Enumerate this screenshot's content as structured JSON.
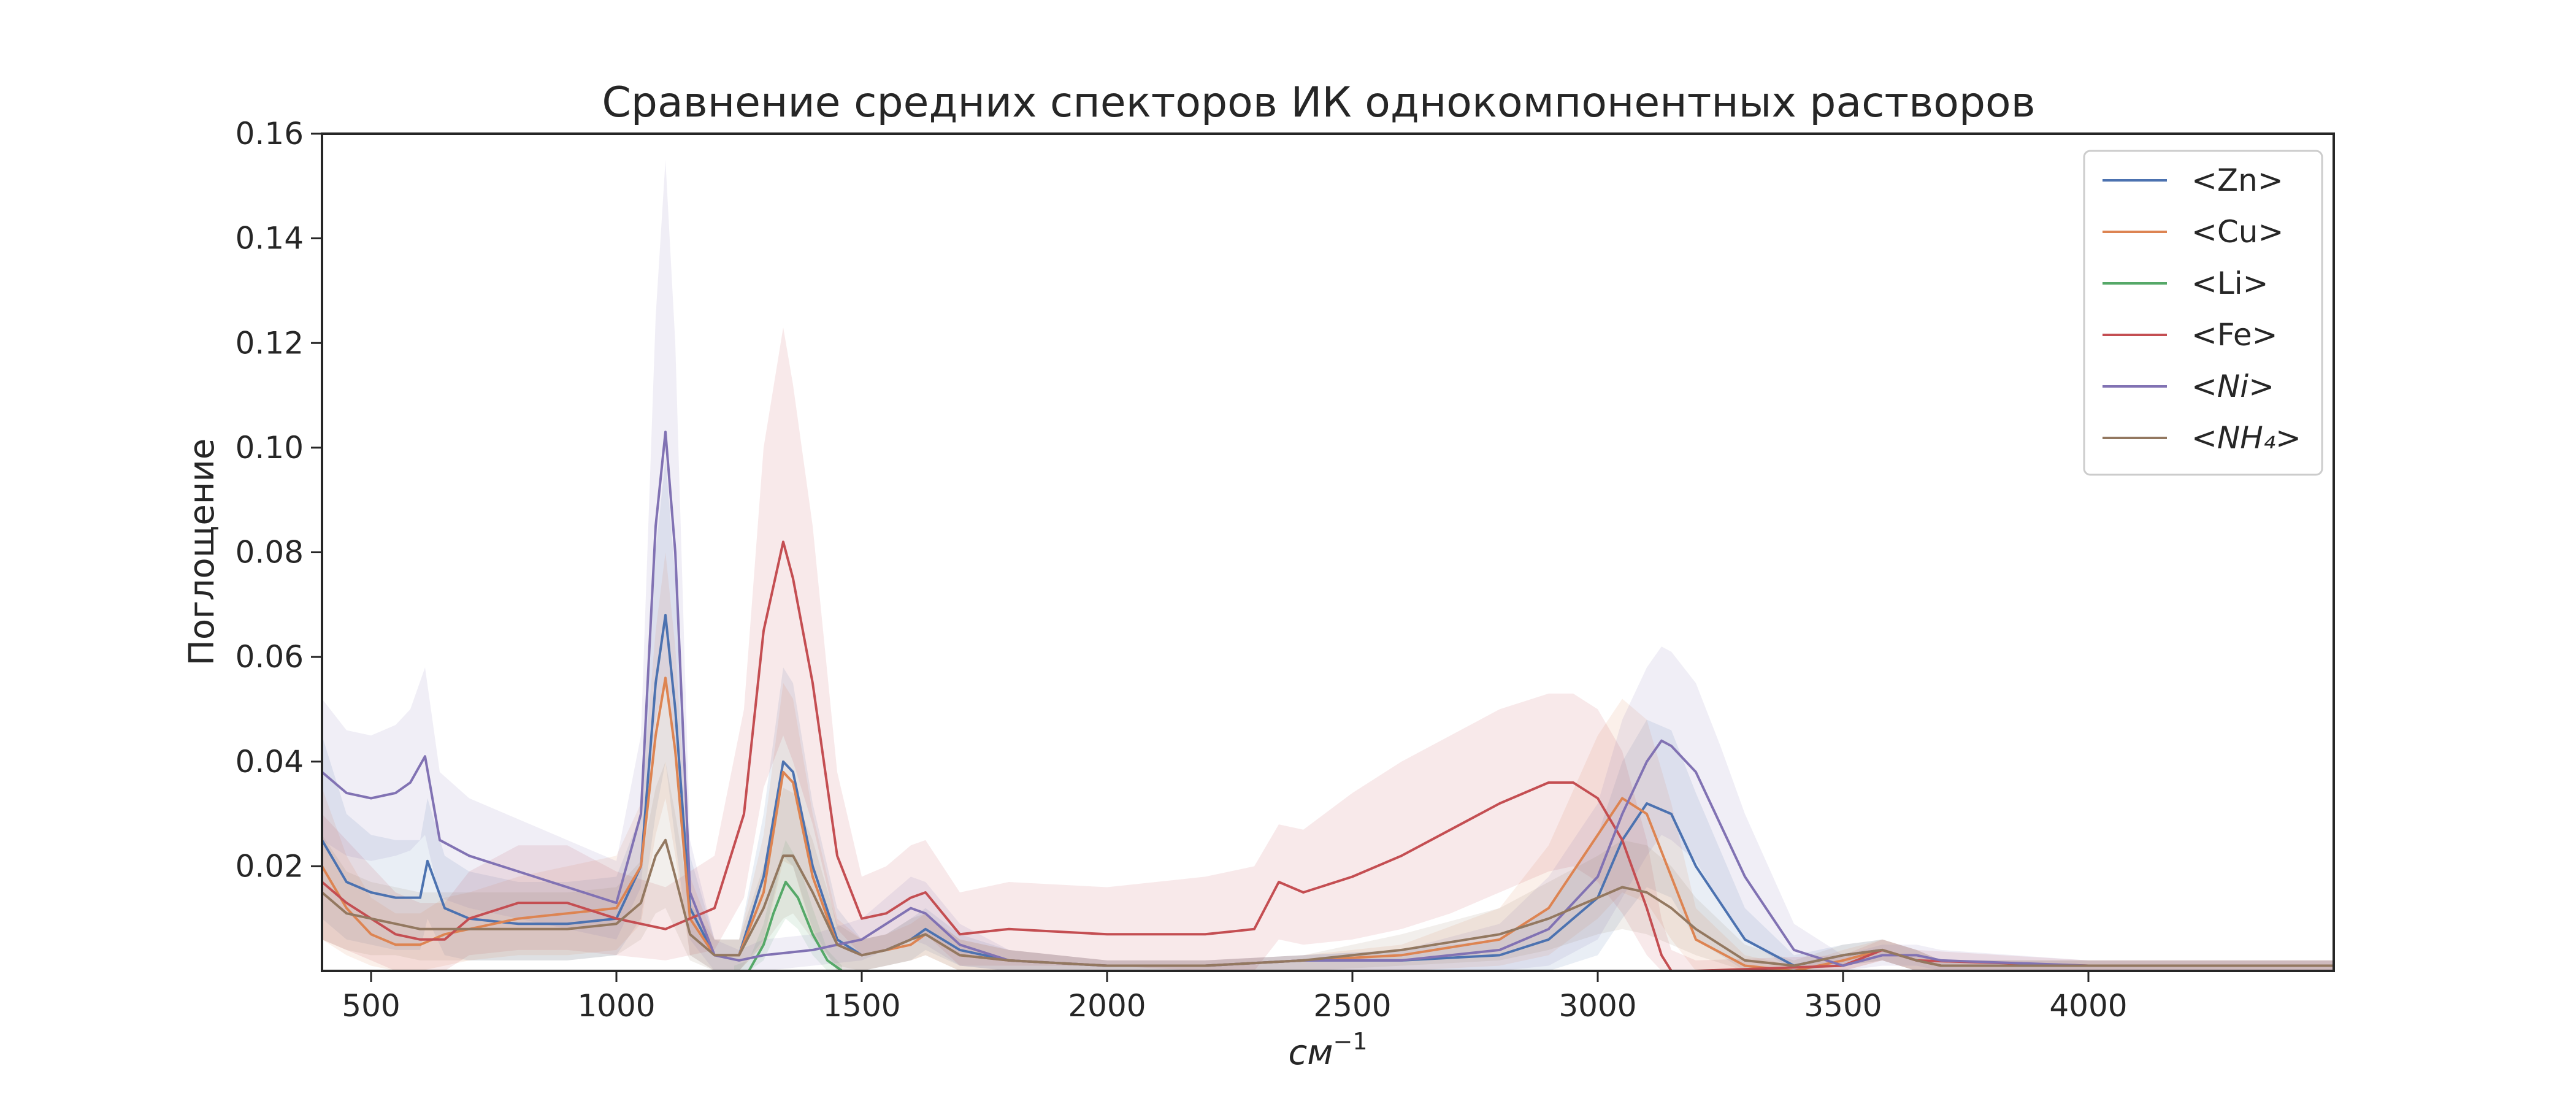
{
  "chart_data": {
    "type": "line",
    "title": "Сравнение средних спекторов ИК однокомпонентных растворов",
    "xlabel": "см",
    "xlabel_sup": "−1",
    "ylabel": "Поглощение",
    "xlim": [
      400,
      4500
    ],
    "ylim": [
      0,
      0.16
    ],
    "x_ticks": [
      500,
      1000,
      1500,
      2000,
      2500,
      3000,
      3500,
      4000
    ],
    "x_tick_labels": [
      "500",
      "1000",
      "1500",
      "2000",
      "2500",
      "3000",
      "3500",
      "4000"
    ],
    "y_ticks": [
      0.02,
      0.04,
      0.06,
      0.08,
      0.1,
      0.12,
      0.14,
      0.16
    ],
    "y_tick_labels": [
      "0.02",
      "0.04",
      "0.06",
      "0.08",
      "0.10",
      "0.12",
      "0.14",
      "0.16"
    ],
    "grid": false,
    "legend_position": "top-right",
    "series": [
      {
        "name": "<Zn>",
        "color": "#4c72b0",
        "x": [
          400,
          450,
          500,
          550,
          600,
          615,
          650,
          700,
          800,
          900,
          1000,
          1050,
          1080,
          1100,
          1120,
          1150,
          1200,
          1250,
          1300,
          1340,
          1360,
          1400,
          1450,
          1500,
          1550,
          1600,
          1630,
          1700,
          1800,
          2000,
          2200,
          2400,
          2600,
          2800,
          2900,
          3000,
          3050,
          3100,
          3150,
          3200,
          3300,
          3400,
          3500,
          3580,
          3650,
          3700,
          4000,
          4500
        ],
        "y": [
          0.025,
          0.017,
          0.015,
          0.014,
          0.014,
          0.021,
          0.012,
          0.01,
          0.009,
          0.009,
          0.01,
          0.02,
          0.055,
          0.068,
          0.05,
          0.012,
          0.003,
          0.003,
          0.018,
          0.04,
          0.038,
          0.02,
          0.006,
          0.003,
          0.004,
          0.006,
          0.008,
          0.004,
          0.002,
          0.001,
          0.001,
          0.002,
          0.002,
          0.003,
          0.006,
          0.014,
          0.025,
          0.032,
          0.03,
          0.02,
          0.006,
          0.001,
          0.003,
          0.004,
          0.002,
          0.001,
          0.001,
          0.001
        ],
        "upper": [
          0.045,
          0.03,
          0.026,
          0.025,
          0.025,
          0.033,
          0.022,
          0.019,
          0.017,
          0.017,
          0.018,
          0.03,
          0.08,
          0.098,
          0.075,
          0.022,
          0.006,
          0.006,
          0.03,
          0.058,
          0.055,
          0.032,
          0.012,
          0.006,
          0.007,
          0.01,
          0.012,
          0.007,
          0.004,
          0.002,
          0.002,
          0.003,
          0.004,
          0.006,
          0.012,
          0.026,
          0.04,
          0.048,
          0.046,
          0.034,
          0.012,
          0.003,
          0.005,
          0.006,
          0.004,
          0.002,
          0.002,
          0.002
        ],
        "lower": [
          0.01,
          0.006,
          0.005,
          0.004,
          0.004,
          0.01,
          0.003,
          0.002,
          0.002,
          0.002,
          0.003,
          0.01,
          0.03,
          0.04,
          0.025,
          0.003,
          0.0,
          0.0,
          0.006,
          0.022,
          0.02,
          0.008,
          0.0,
          0.0,
          0.001,
          0.002,
          0.004,
          0.001,
          0.0,
          0.0,
          0.0,
          0.0,
          0.0,
          0.0,
          0.0,
          0.003,
          0.01,
          0.016,
          0.014,
          0.006,
          0.0,
          0.0,
          0.001,
          0.002,
          0.0,
          0.0,
          0.0,
          0.0
        ]
      },
      {
        "name": "<Cu>",
        "color": "#dd8452",
        "x": [
          400,
          450,
          500,
          550,
          600,
          650,
          700,
          800,
          900,
          1000,
          1050,
          1080,
          1100,
          1120,
          1150,
          1200,
          1250,
          1300,
          1340,
          1360,
          1400,
          1450,
          1500,
          1550,
          1600,
          1630,
          1700,
          1800,
          2000,
          2200,
          2400,
          2600,
          2800,
          2900,
          3000,
          3050,
          3100,
          3150,
          3200,
          3300,
          3400,
          3500,
          3580,
          3650,
          3700,
          4000,
          4500
        ],
        "y": [
          0.02,
          0.012,
          0.007,
          0.005,
          0.005,
          0.007,
          0.008,
          0.01,
          0.011,
          0.012,
          0.02,
          0.045,
          0.056,
          0.042,
          0.01,
          0.003,
          0.003,
          0.015,
          0.038,
          0.036,
          0.018,
          0.005,
          0.003,
          0.004,
          0.005,
          0.007,
          0.003,
          0.002,
          0.001,
          0.001,
          0.002,
          0.003,
          0.006,
          0.012,
          0.026,
          0.033,
          0.03,
          0.018,
          0.006,
          0.001,
          0.0,
          0.002,
          0.004,
          0.002,
          0.001,
          0.001,
          0.001
        ],
        "upper": [
          0.035,
          0.022,
          0.014,
          0.011,
          0.011,
          0.014,
          0.015,
          0.018,
          0.02,
          0.022,
          0.032,
          0.065,
          0.08,
          0.062,
          0.018,
          0.006,
          0.006,
          0.026,
          0.055,
          0.052,
          0.03,
          0.01,
          0.006,
          0.007,
          0.009,
          0.011,
          0.006,
          0.004,
          0.002,
          0.002,
          0.003,
          0.005,
          0.012,
          0.024,
          0.045,
          0.052,
          0.048,
          0.032,
          0.012,
          0.003,
          0.001,
          0.004,
          0.006,
          0.004,
          0.002,
          0.002,
          0.002
        ],
        "lower": [
          0.006,
          0.003,
          0.001,
          0.0,
          0.0,
          0.001,
          0.002,
          0.003,
          0.003,
          0.004,
          0.009,
          0.026,
          0.033,
          0.022,
          0.003,
          0.0,
          0.0,
          0.005,
          0.021,
          0.02,
          0.007,
          0.0,
          0.0,
          0.001,
          0.002,
          0.003,
          0.0,
          0.0,
          0.0,
          0.0,
          0.0,
          0.0,
          0.001,
          0.003,
          0.01,
          0.015,
          0.013,
          0.006,
          0.0,
          0.0,
          0.0,
          0.0,
          0.002,
          0.0,
          0.0,
          0.0,
          0.0
        ]
      },
      {
        "name": "<Li>",
        "color": "#55a868",
        "x": [
          1240,
          1270,
          1300,
          1320,
          1345,
          1370,
          1400,
          1430,
          1460
        ],
        "y": [
          0.0,
          0.0,
          0.005,
          0.011,
          0.017,
          0.014,
          0.007,
          0.002,
          0.0
        ],
        "upper": [
          0.001,
          0.002,
          0.009,
          0.017,
          0.025,
          0.021,
          0.012,
          0.004,
          0.001
        ],
        "lower": [
          0.0,
          0.0,
          0.002,
          0.006,
          0.01,
          0.008,
          0.003,
          0.0,
          0.0
        ]
      },
      {
        "name": "<Fe>",
        "color": "#c44e52",
        "x": [
          400,
          450,
          500,
          550,
          600,
          650,
          700,
          800,
          900,
          1000,
          1100,
          1200,
          1260,
          1300,
          1340,
          1360,
          1400,
          1450,
          1500,
          1550,
          1600,
          1630,
          1700,
          1800,
          2000,
          2200,
          2300,
          2350,
          2400,
          2500,
          2600,
          2700,
          2800,
          2900,
          2950,
          3000,
          3050,
          3100,
          3130,
          3150,
          3200,
          3500,
          3580,
          3650,
          4000,
          4500
        ],
        "y": [
          0.017,
          0.013,
          0.01,
          0.007,
          0.006,
          0.006,
          0.01,
          0.013,
          0.013,
          0.01,
          0.008,
          0.012,
          0.03,
          0.065,
          0.082,
          0.075,
          0.055,
          0.022,
          0.01,
          0.011,
          0.014,
          0.015,
          0.007,
          0.008,
          0.007,
          0.007,
          0.008,
          0.017,
          0.015,
          0.018,
          0.022,
          0.027,
          0.032,
          0.036,
          0.036,
          0.033,
          0.025,
          0.012,
          0.003,
          0.0,
          0.0,
          0.001,
          0.004,
          0.002,
          0.001,
          0.001
        ],
        "upper": [
          0.03,
          0.025,
          0.02,
          0.015,
          0.013,
          0.013,
          0.019,
          0.024,
          0.024,
          0.019,
          0.016,
          0.022,
          0.05,
          0.1,
          0.123,
          0.112,
          0.085,
          0.038,
          0.018,
          0.02,
          0.024,
          0.025,
          0.015,
          0.017,
          0.016,
          0.018,
          0.02,
          0.028,
          0.027,
          0.034,
          0.04,
          0.045,
          0.05,
          0.053,
          0.053,
          0.05,
          0.042,
          0.025,
          0.01,
          0.004,
          0.002,
          0.003,
          0.006,
          0.004,
          0.002,
          0.002
        ],
        "lower": [
          0.006,
          0.004,
          0.002,
          0.0,
          0.0,
          0.0,
          0.003,
          0.004,
          0.004,
          0.003,
          0.002,
          0.004,
          0.014,
          0.035,
          0.045,
          0.04,
          0.028,
          0.008,
          0.003,
          0.004,
          0.006,
          0.007,
          0.001,
          0.001,
          0.001,
          0.0,
          0.0,
          0.006,
          0.005,
          0.006,
          0.008,
          0.011,
          0.015,
          0.019,
          0.02,
          0.017,
          0.011,
          0.003,
          0.0,
          0.0,
          0.0,
          0.0,
          0.002,
          0.0,
          0.0,
          0.0
        ]
      },
      {
        "name": "<Ni>",
        "color": "#8172b3",
        "x": [
          400,
          450,
          500,
          550,
          580,
          610,
          640,
          700,
          800,
          900,
          1000,
          1050,
          1080,
          1100,
          1120,
          1150,
          1200,
          1250,
          1300,
          1400,
          1500,
          1550,
          1600,
          1630,
          1700,
          1800,
          2000,
          2200,
          2400,
          2600,
          2800,
          2900,
          3000,
          3050,
          3100,
          3130,
          3150,
          3200,
          3250,
          3300,
          3400,
          3500,
          3580,
          3650,
          3700,
          4000,
          4500
        ],
        "y": [
          0.038,
          0.034,
          0.033,
          0.034,
          0.036,
          0.041,
          0.025,
          0.022,
          0.019,
          0.016,
          0.013,
          0.03,
          0.085,
          0.103,
          0.08,
          0.015,
          0.003,
          0.002,
          0.003,
          0.004,
          0.006,
          0.009,
          0.012,
          0.011,
          0.005,
          0.002,
          0.001,
          0.001,
          0.002,
          0.002,
          0.004,
          0.008,
          0.018,
          0.03,
          0.04,
          0.044,
          0.043,
          0.038,
          0.028,
          0.018,
          0.004,
          0.001,
          0.003,
          0.003,
          0.002,
          0.001,
          0.001
        ],
        "upper": [
          0.052,
          0.046,
          0.045,
          0.047,
          0.05,
          0.058,
          0.038,
          0.033,
          0.029,
          0.025,
          0.021,
          0.045,
          0.125,
          0.155,
          0.12,
          0.025,
          0.006,
          0.004,
          0.006,
          0.007,
          0.01,
          0.014,
          0.018,
          0.017,
          0.009,
          0.004,
          0.002,
          0.002,
          0.003,
          0.004,
          0.009,
          0.018,
          0.032,
          0.048,
          0.058,
          0.062,
          0.061,
          0.055,
          0.043,
          0.03,
          0.009,
          0.003,
          0.005,
          0.005,
          0.004,
          0.002,
          0.002
        ],
        "lower": [
          0.025,
          0.022,
          0.021,
          0.022,
          0.023,
          0.026,
          0.014,
          0.012,
          0.01,
          0.008,
          0.006,
          0.016,
          0.048,
          0.056,
          0.04,
          0.006,
          0.0,
          0.0,
          0.0,
          0.001,
          0.002,
          0.004,
          0.006,
          0.005,
          0.001,
          0.0,
          0.0,
          0.0,
          0.0,
          0.0,
          0.0,
          0.001,
          0.006,
          0.014,
          0.022,
          0.026,
          0.025,
          0.021,
          0.013,
          0.006,
          0.0,
          0.0,
          0.001,
          0.001,
          0.0,
          0.0,
          0.0
        ]
      },
      {
        "name": "<NH₄>",
        "color": "#937860",
        "x": [
          400,
          450,
          500,
          550,
          600,
          650,
          700,
          800,
          900,
          1000,
          1050,
          1080,
          1100,
          1120,
          1150,
          1200,
          1250,
          1300,
          1340,
          1360,
          1400,
          1450,
          1500,
          1550,
          1600,
          1630,
          1700,
          1800,
          2000,
          2200,
          2400,
          2600,
          2800,
          2900,
          3000,
          3050,
          3100,
          3150,
          3200,
          3300,
          3400,
          3500,
          3580,
          3650,
          3700,
          4000,
          4500
        ],
        "y": [
          0.015,
          0.011,
          0.01,
          0.009,
          0.008,
          0.008,
          0.008,
          0.008,
          0.008,
          0.009,
          0.013,
          0.022,
          0.025,
          0.018,
          0.007,
          0.003,
          0.003,
          0.012,
          0.022,
          0.022,
          0.015,
          0.005,
          0.003,
          0.004,
          0.006,
          0.007,
          0.003,
          0.002,
          0.001,
          0.001,
          0.002,
          0.004,
          0.007,
          0.01,
          0.014,
          0.016,
          0.015,
          0.012,
          0.008,
          0.002,
          0.001,
          0.003,
          0.004,
          0.002,
          0.001,
          0.001,
          0.001
        ],
        "upper": [
          0.026,
          0.019,
          0.017,
          0.016,
          0.015,
          0.015,
          0.015,
          0.015,
          0.015,
          0.016,
          0.021,
          0.035,
          0.04,
          0.03,
          0.013,
          0.006,
          0.006,
          0.02,
          0.035,
          0.034,
          0.025,
          0.009,
          0.006,
          0.007,
          0.01,
          0.011,
          0.006,
          0.004,
          0.002,
          0.002,
          0.003,
          0.007,
          0.012,
          0.017,
          0.022,
          0.025,
          0.024,
          0.02,
          0.014,
          0.005,
          0.002,
          0.005,
          0.006,
          0.004,
          0.002,
          0.002,
          0.002
        ],
        "lower": [
          0.006,
          0.004,
          0.003,
          0.003,
          0.002,
          0.002,
          0.002,
          0.002,
          0.002,
          0.003,
          0.006,
          0.011,
          0.012,
          0.008,
          0.002,
          0.0,
          0.0,
          0.005,
          0.01,
          0.011,
          0.006,
          0.001,
          0.0,
          0.001,
          0.002,
          0.003,
          0.0,
          0.0,
          0.0,
          0.0,
          0.0,
          0.001,
          0.002,
          0.004,
          0.007,
          0.008,
          0.007,
          0.005,
          0.003,
          0.0,
          0.0,
          0.001,
          0.002,
          0.0,
          0.0,
          0.0,
          0.0
        ]
      }
    ]
  }
}
